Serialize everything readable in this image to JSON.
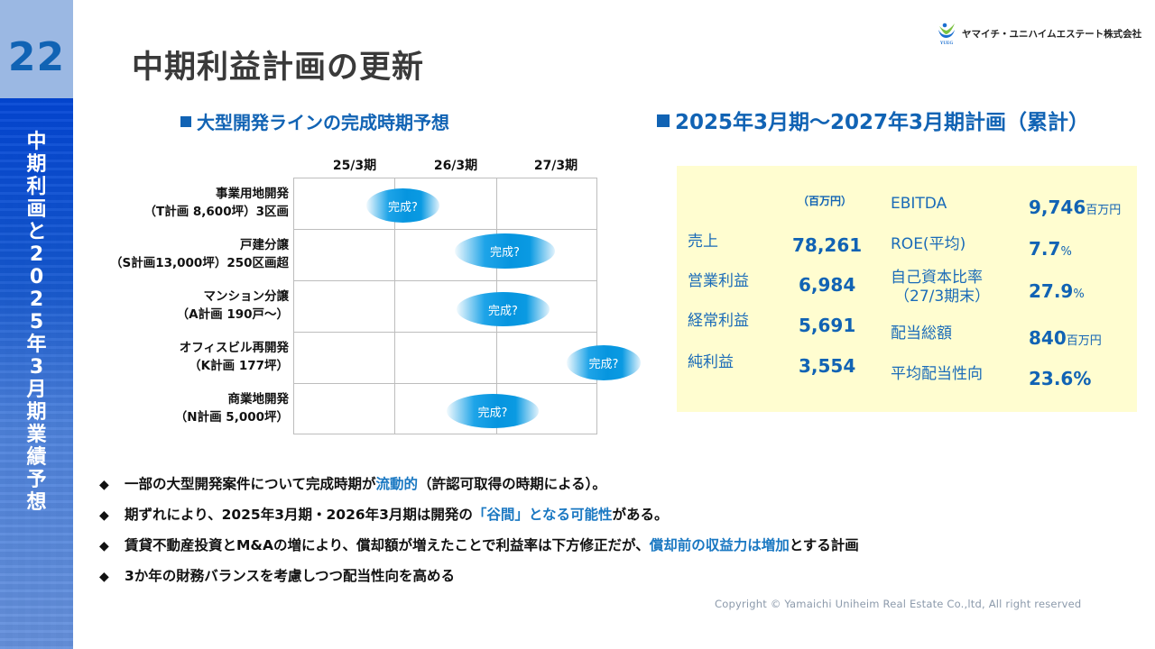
{
  "slide": {
    "page_number": "22",
    "title": "中期利益計画の更新",
    "side_title": "中期利画と2025年3月期業績予想"
  },
  "logo": {
    "mark_caption": "YUEG",
    "company_name": "ヤマイチ・ユニハイムエステート株式会社",
    "colors": {
      "green": "#7cc242",
      "blue": "#1b6fd0"
    }
  },
  "timeline": {
    "heading": "大型開発ラインの完成時期予想",
    "columns": [
      "25/3期",
      "26/3期",
      "27/3期"
    ],
    "rows": [
      {
        "line1": "事業用地開発",
        "line2": "（T計画 8,600坪）3区画",
        "bubble": "完成?"
      },
      {
        "line1": "戸建分譲",
        "line2": "（S計画13,000坪）250区画超",
        "bubble": "完成?"
      },
      {
        "line1": "マンション分譲",
        "line2": "（A計画 190戸～）",
        "bubble": "完成?"
      },
      {
        "line1": "オフィスビル再開発",
        "line2": "（K計画 177坪）",
        "bubble": "完成?"
      },
      {
        "line1": "商業地開発",
        "line2": "（N計画 5,000坪）",
        "bubble": "完成?"
      }
    ]
  },
  "plan": {
    "heading": "2025年3月期～2027年3月期計画（累計）",
    "unit_header": "（百万円）",
    "left_metrics": [
      {
        "label": "売上",
        "value": "78,261"
      },
      {
        "label": "営業利益",
        "value": "6,984"
      },
      {
        "label": "経常利益",
        "value": "5,691"
      },
      {
        "label": "純利益",
        "value": "3,554"
      }
    ],
    "right_metrics": [
      {
        "label": "EBITDA",
        "label2": "",
        "value": "9,746",
        "unit": "百万円"
      },
      {
        "label": "ROE(平均)",
        "label2": "",
        "value": "7.7",
        "unit": "%"
      },
      {
        "label": "自己資本比率",
        "label2": "（27/3期末）",
        "value": "27.9",
        "unit": "%"
      },
      {
        "label": "配当総額",
        "label2": "",
        "value": "840",
        "unit": "百万円"
      },
      {
        "label": "平均配当性向",
        "label2": "",
        "value": "23.6%",
        "unit": ""
      }
    ],
    "panel_color": "#fffdd0"
  },
  "bullets": [
    {
      "marker": "◆",
      "parts": [
        {
          "text": "一部の大型開発案件について完成時期が",
          "hl": false
        },
        {
          "text": "流動的",
          "hl": true
        },
        {
          "text": "（許認可取得の時期による）。",
          "hl": false
        }
      ]
    },
    {
      "marker": "◆",
      "parts": [
        {
          "text": "期ずれにより、2025年3月期・2026年3月期は開発の",
          "hl": false
        },
        {
          "text": "「谷間」となる可能性",
          "hl": true
        },
        {
          "text": "がある。",
          "hl": false
        }
      ]
    },
    {
      "marker": "◆",
      "parts": [
        {
          "text": "賃貸不動産投資とM&Aの増により、償却額が増えたことで利益率は下方修正だが、",
          "hl": false
        },
        {
          "text": "償却前の収益力は増加",
          "hl": true
        },
        {
          "text": "とする計画",
          "hl": false
        }
      ]
    },
    {
      "marker": "◆",
      "parts": [
        {
          "text": "3か年の財務バランスを考慮しつつ配当性向を高める",
          "hl": false
        }
      ]
    }
  ],
  "footer": {
    "copyright": "Copyright © Yamaichi Uniheim Real Estate Co.,ltd, All right reserved"
  },
  "colors": {
    "accent_blue": "#1163b4",
    "highlight_blue": "#1a78c2",
    "sidebar_top": "#9bb8e3",
    "sidebar_band": "#0346d4",
    "bubble": "#0695df",
    "grid_line": "#bdbdbd"
  }
}
